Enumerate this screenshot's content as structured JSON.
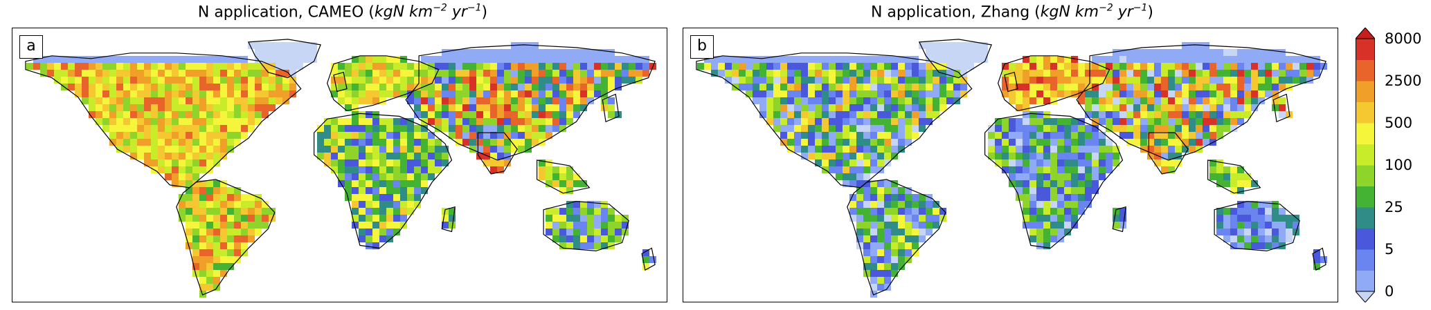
{
  "panels": [
    {
      "id": "a",
      "letter": "a",
      "title_prefix": "N application, CAMEO (",
      "unit": "kgN km",
      "unit_exp1": "−2",
      "unit_mid": " yr",
      "unit_exp2": "−1",
      "title_suffix": ")"
    },
    {
      "id": "b",
      "letter": "b",
      "title_prefix": "N application, Zhang (",
      "unit": "kgN km",
      "unit_exp1": "−2",
      "unit_mid": " yr",
      "unit_exp2": "−1",
      "title_suffix": ")"
    }
  ],
  "colorbar": {
    "tick_labels": [
      "8000",
      "2500",
      "500",
      "100",
      "25",
      "5",
      "0"
    ],
    "colors": [
      "#c8d6f5",
      "#90aaf5",
      "#6b85f0",
      "#4a58dc",
      "#2f8c86",
      "#44b232",
      "#8fd42a",
      "#c8ec2a",
      "#f5f53c",
      "#f5c832",
      "#f0a028",
      "#e8642a",
      "#d83228",
      "#c81e1e"
    ],
    "extend": "both"
  }
}
